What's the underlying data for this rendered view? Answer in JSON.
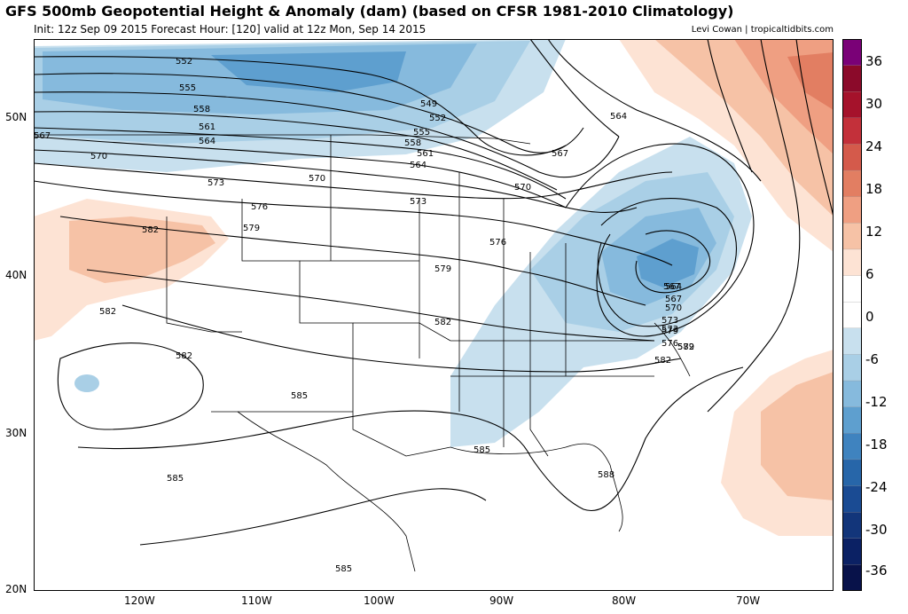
{
  "title": "GFS 500mb Geopotential Height & Anomaly (dam) (based on CFSR 1981-2010 Climatology)",
  "subtitle": "Init: 12z Sep 09 2015   Forecast Hour: [120]   valid at 12z Mon, Sep 14 2015",
  "credit": "Levi Cowan | tropicaltidbits.com",
  "lat_labels": [
    "50N",
    "40N",
    "30N",
    "20N"
  ],
  "lon_labels": [
    "120W",
    "110W",
    "100W",
    "90W",
    "80W",
    "70W"
  ],
  "colorbar": {
    "labels": [
      "36",
      "30",
      "24",
      "18",
      "12",
      "6",
      "0",
      "-6",
      "-12",
      "-18",
      "-24",
      "-30",
      "-36"
    ],
    "colors": [
      "#7a0177",
      "#8b0a2a",
      "#a5122b",
      "#c3303a",
      "#d45a4b",
      "#e27e62",
      "#ef9f82",
      "#f6c2a6",
      "#fde3d4",
      "#ffffff",
      "#ffffff",
      "#c8e0ee",
      "#a9cfe6",
      "#86badd",
      "#5e9fcf",
      "#3f83bf",
      "#2766a9",
      "#1a4b93",
      "#12357a",
      "#0b2164",
      "#08124a"
    ]
  },
  "contour_labels": [
    "552",
    "555",
    "558",
    "561",
    "564",
    "567",
    "570",
    "573",
    "576",
    "579",
    "582",
    "585",
    "549",
    "552",
    "555",
    "558",
    "561",
    "564",
    "567",
    "570",
    "573",
    "576",
    "579",
    "582",
    "585",
    "588",
    "564",
    "567",
    "570",
    "573",
    "579",
    "582",
    "564",
    "567",
    "570",
    "573",
    "576",
    "579",
    "582",
    "582",
    "582",
    "585",
    "585"
  ]
}
